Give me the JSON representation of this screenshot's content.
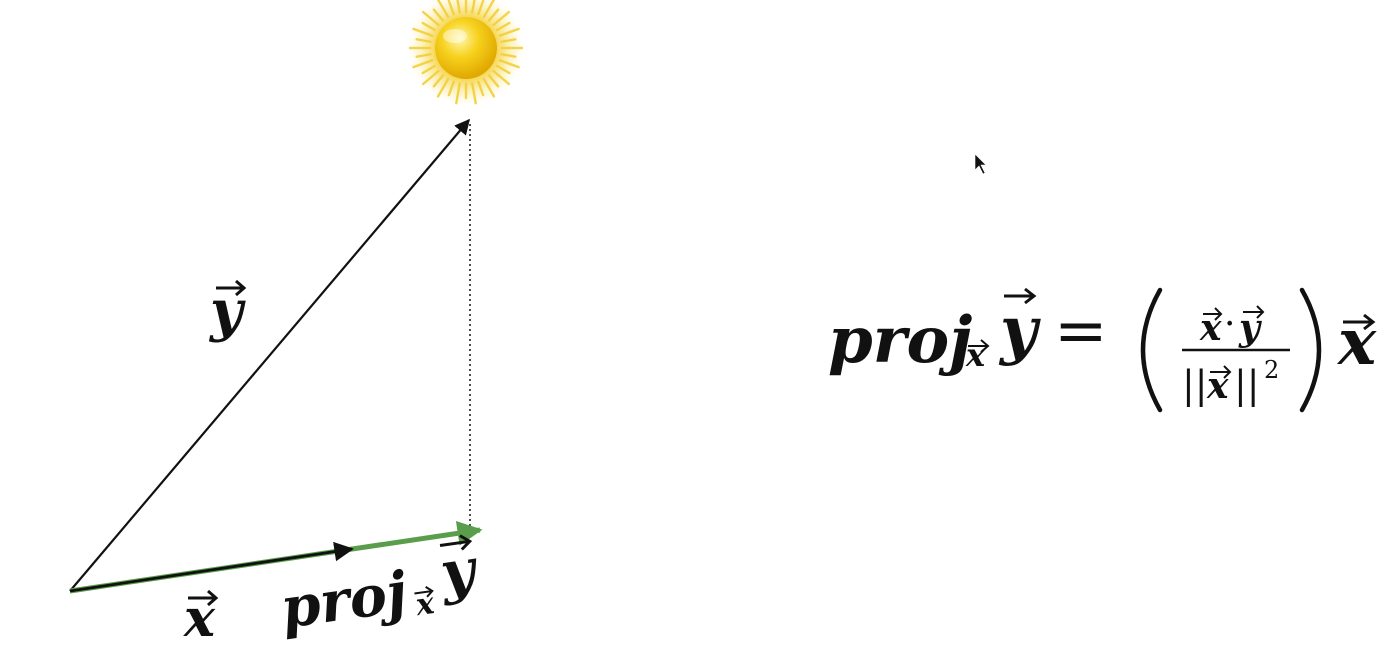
{
  "diagram": {
    "vector_y_label": "y",
    "vector_x_label": "x",
    "projection_label": {
      "prefix": "proj",
      "subscript": "x",
      "vector": "y"
    },
    "colors": {
      "vector": "#111111",
      "projection": "#5a9e4b",
      "sun_core": "#f7d21e",
      "sun_rays": "#f5d54a"
    },
    "icons": {
      "sun": "sun-icon",
      "cursor": "mouse-pointer-icon"
    }
  },
  "formula": {
    "lhs_prefix": "proj",
    "lhs_subscript": "x",
    "lhs_vector": "y",
    "equals": "=",
    "numerator_left": "x",
    "numerator_dot": "·",
    "numerator_right": "y",
    "denominator_bars_left": "||",
    "denominator_vector": "x",
    "denominator_bars_right": "||",
    "denominator_exponent": "2",
    "rhs_vector": "x"
  }
}
